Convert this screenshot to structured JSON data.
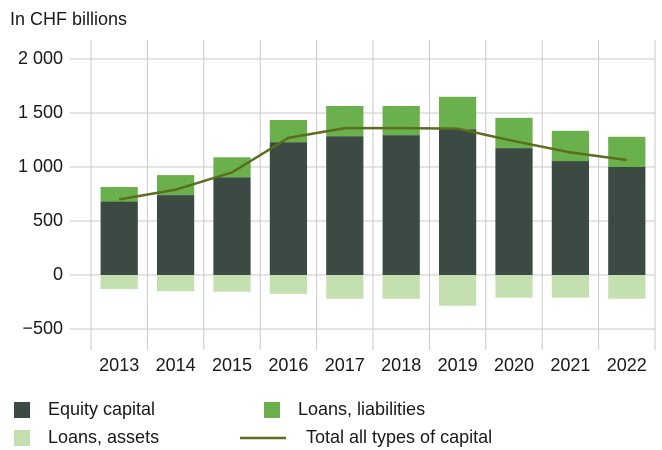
{
  "chart_data": {
    "type": "bar",
    "stacked": true,
    "y_axis_label": "In CHF billions",
    "categories": [
      "2013",
      "2014",
      "2015",
      "2016",
      "2017",
      "2018",
      "2019",
      "2020",
      "2021",
      "2022"
    ],
    "series": [
      {
        "name": "Equity capital",
        "color": "#3b4a42",
        "values": [
          680,
          740,
          905,
          1230,
          1285,
          1295,
          1350,
          1175,
          1055,
          1000
        ]
      },
      {
        "name": "Loans, liabilities",
        "color": "#6ab04c",
        "values": [
          135,
          185,
          185,
          205,
          280,
          270,
          300,
          280,
          280,
          280
        ]
      },
      {
        "name": "Loans, assets",
        "color": "#c5e0b0",
        "values": [
          -130,
          -150,
          -155,
          -175,
          -220,
          -220,
          -285,
          -210,
          -210,
          -220
        ]
      },
      {
        "name": "Total all types of capital",
        "color": "#5a6e1e",
        "type": "line",
        "values": [
          700,
          790,
          950,
          1270,
          1360,
          1360,
          1355,
          1240,
          1135,
          1065
        ]
      }
    ],
    "ylim": [
      -500,
      2000
    ],
    "yticks": [
      {
        "value": -500,
        "label": "−500"
      },
      0,
      500,
      {
        "value": 1000,
        "label": "1 000"
      },
      {
        "value": 1500,
        "label": "1 500"
      },
      {
        "value": 2000,
        "label": "2 000"
      }
    ],
    "grid": true,
    "legend": "bottom"
  }
}
